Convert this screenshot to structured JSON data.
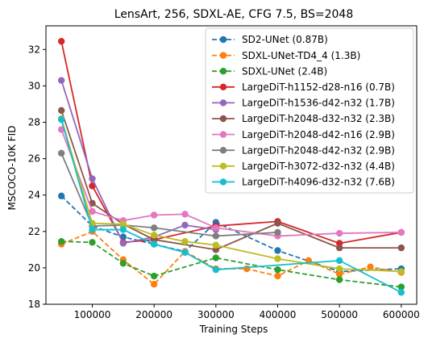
{
  "chart_data": {
    "type": "line",
    "title": "LensArt, 256, SDXL-AE, CFG 7.5, BS=2048",
    "xlabel": "Training Steps",
    "ylabel": "MSCOCO-10K FID",
    "xlim": [
      25000,
      625000
    ],
    "ylim": [
      18,
      33.3
    ],
    "xticks": [
      100000,
      200000,
      300000,
      400000,
      500000,
      600000
    ],
    "xtick_labels": [
      "100000",
      "200000",
      "300000",
      "400000",
      "500000",
      "600000"
    ],
    "yticks": [
      18,
      20,
      22,
      24,
      26,
      28,
      30,
      32
    ],
    "ytick_labels": [
      "18",
      "20",
      "22",
      "24",
      "26",
      "28",
      "30",
      "32"
    ],
    "grid": false,
    "legend_position": "top-right",
    "series": [
      {
        "name": "SD2-UNet (0.87B)",
        "color": "#1f77b4",
        "linestyle": "dashed",
        "x": [
          50000,
          100000,
          150000,
          200000,
          250000,
          300000,
          400000,
          500000,
          600000
        ],
        "y": [
          23.95,
          22.3,
          21.7,
          21.3,
          20.9,
          22.5,
          20.95,
          19.8,
          19.95
        ]
      },
      {
        "name": "SDXL-UNet-TD4_4 (1.3B)",
        "color": "#ff7f0e",
        "linestyle": "dashed",
        "x": [
          50000,
          100000,
          150000,
          200000,
          250000,
          300000,
          350000,
          400000,
          450000,
          500000,
          550000,
          600000
        ],
        "y": [
          21.3,
          22.0,
          20.45,
          19.1,
          20.9,
          19.95,
          19.95,
          19.55,
          20.4,
          19.65,
          20.05,
          19.75
        ]
      },
      {
        "name": "SDXL-UNet (2.4B)",
        "color": "#2ca02c",
        "linestyle": "dashed",
        "x": [
          50000,
          100000,
          150000,
          200000,
          300000,
          400000,
          500000,
          600000
        ],
        "y": [
          21.45,
          21.4,
          20.25,
          19.55,
          20.55,
          19.9,
          19.35,
          18.95
        ]
      },
      {
        "name": "LargeDiT-h1152-d28-n16 (0.7B)",
        "color": "#d62728",
        "linestyle": "solid",
        "x": [
          50000,
          100000,
          150000,
          200000,
          300000,
          400000,
          500000,
          600000
        ],
        "y": [
          32.45,
          24.5,
          21.4,
          21.55,
          22.3,
          22.55,
          21.35,
          21.95
        ]
      },
      {
        "name": "LargeDiT-h1536-d42-n32 (1.7B)",
        "color": "#9467bd",
        "linestyle": "solid",
        "x": [
          50000,
          100000,
          150000,
          200000,
          250000,
          300000
        ],
        "y": [
          30.3,
          24.9,
          21.35,
          21.7,
          22.35,
          22.1
        ]
      },
      {
        "name": "LargeDiT-h2048-d32-n32 (2.3B)",
        "color": "#8c564b",
        "linestyle": "solid",
        "x": [
          50000,
          100000,
          150000,
          200000,
          300000,
          400000,
          500000,
          600000
        ],
        "y": [
          28.65,
          23.55,
          22.4,
          21.55,
          21.0,
          22.45,
          21.1,
          21.1
        ]
      },
      {
        "name": "LargeDiT-h2048-d42-n16 (2.9B)",
        "color": "#e377c2",
        "linestyle": "solid",
        "x": [
          50000,
          100000,
          150000,
          200000,
          250000,
          300000,
          400000,
          500000,
          600000
        ],
        "y": [
          27.6,
          23.1,
          22.6,
          22.9,
          22.95,
          22.2,
          21.75,
          21.9,
          21.95
        ]
      },
      {
        "name": "LargeDiT-h2048-d42-n32 (2.9B)",
        "color": "#7f7f7f",
        "linestyle": "solid",
        "x": [
          50000,
          100000,
          150000,
          200000,
          300000,
          400000
        ],
        "y": [
          26.3,
          22.3,
          22.35,
          22.2,
          21.75,
          21.95
        ]
      },
      {
        "name": "LargeDiT-h3072-d32-n32 (4.4B)",
        "color": "#bcbd22",
        "linestyle": "solid",
        "x": [
          50000,
          100000,
          150000,
          200000,
          250000,
          300000,
          400000,
          500000,
          600000
        ],
        "y": [
          28.2,
          22.45,
          22.4,
          21.8,
          21.45,
          21.25,
          20.5,
          19.95,
          19.8
        ]
      },
      {
        "name": "LargeDiT-h4096-d32-n32 (7.6B)",
        "color": "#17becf",
        "linestyle": "solid",
        "x": [
          50000,
          100000,
          150000,
          200000,
          250000,
          300000,
          500000,
          600000
        ],
        "y": [
          28.15,
          22.1,
          22.1,
          21.3,
          20.85,
          19.9,
          20.4,
          18.65
        ]
      }
    ]
  }
}
